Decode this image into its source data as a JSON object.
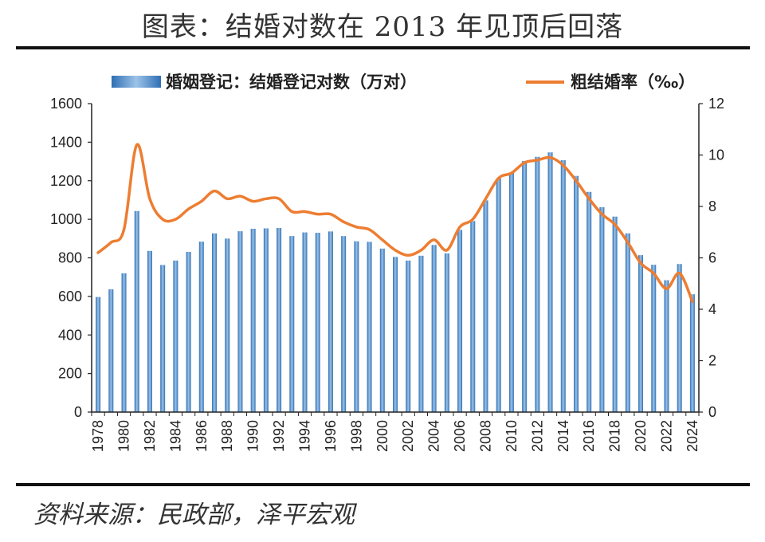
{
  "title": "图表：结婚对数在 2013 年见顶后回落",
  "source": "资料来源：民政部，泽平宏观",
  "colors": {
    "bar": "#4a86c5",
    "bar_light": "#bcd6ee",
    "line": "#ed7d31",
    "axis": "#222222"
  },
  "chart_data": {
    "type": "bar",
    "categories": [
      "1978",
      "1979",
      "1980",
      "1981",
      "1982",
      "1983",
      "1984",
      "1985",
      "1986",
      "1987",
      "1988",
      "1989",
      "1990",
      "1991",
      "1992",
      "1993",
      "1994",
      "1995",
      "1996",
      "1997",
      "1998",
      "1999",
      "2000",
      "2001",
      "2002",
      "2003",
      "2004",
      "2005",
      "2006",
      "2007",
      "2008",
      "2009",
      "2010",
      "2011",
      "2012",
      "2013",
      "2014",
      "2015",
      "2016",
      "2017",
      "2018",
      "2019",
      "2020",
      "2021",
      "2022",
      "2023",
      "2024"
    ],
    "x_tick_labels": [
      "1978",
      "1980",
      "1982",
      "1984",
      "1986",
      "1988",
      "1990",
      "1992",
      "1994",
      "1996",
      "1998",
      "2000",
      "2002",
      "2004",
      "2006",
      "2008",
      "2010",
      "2012",
      "2014",
      "2016",
      "2018",
      "2020",
      "2022",
      "2024"
    ],
    "series": [
      {
        "name": "婚姻登记：结婚登记对数（万对）",
        "type": "bar",
        "axis": "left",
        "values": [
          597,
          637,
          720,
          1043,
          836,
          763,
          786,
          831,
          884,
          927,
          900,
          938,
          951,
          953,
          955,
          913,
          932,
          930,
          937,
          913,
          886,
          883,
          848,
          805,
          786,
          811,
          867,
          823,
          945,
          991,
          1098,
          1212,
          1241,
          1302,
          1324,
          1347,
          1307,
          1225,
          1142,
          1063,
          1014,
          927,
          814,
          764,
          684,
          768,
          611
        ]
      },
      {
        "name": "粗结婚率（‰）",
        "type": "line",
        "axis": "right",
        "values": [
          6.2,
          6.6,
          7.1,
          10.4,
          8.3,
          7.5,
          7.5,
          7.9,
          8.2,
          8.6,
          8.3,
          8.4,
          8.2,
          8.3,
          8.3,
          7.8,
          7.8,
          7.7,
          7.7,
          7.4,
          7.2,
          7.1,
          6.7,
          6.3,
          6.1,
          6.3,
          6.7,
          6.3,
          7.2,
          7.5,
          8.3,
          9.1,
          9.3,
          9.7,
          9.8,
          9.9,
          9.6,
          9.0,
          8.3,
          7.7,
          7.3,
          6.6,
          5.8,
          5.4,
          4.8,
          5.4,
          4.3
        ]
      }
    ],
    "y_left": {
      "min": 0,
      "max": 1600,
      "ticks": [
        "0",
        "200",
        "400",
        "600",
        "800",
        "1000",
        "1200",
        "1400",
        "1600"
      ]
    },
    "y_right": {
      "min": 0,
      "max": 12,
      "ticks": [
        "0",
        "2",
        "4",
        "6",
        "8",
        "10",
        "12"
      ]
    },
    "legend_position": "top",
    "grid": false
  }
}
